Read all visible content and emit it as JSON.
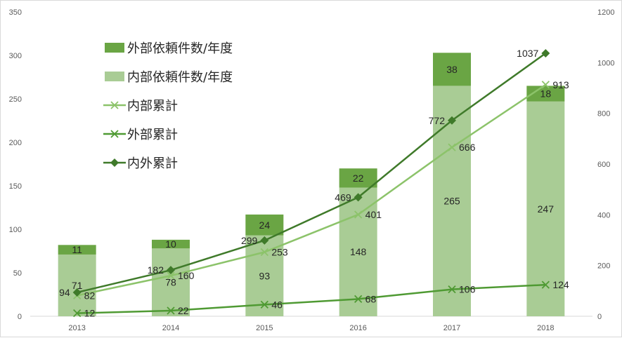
{
  "chart_data": {
    "type": "bar",
    "categories": [
      "2013",
      "2014",
      "2015",
      "2016",
      "2017",
      "2018"
    ],
    "series": [
      {
        "name": "外部依頼件数/年度",
        "type": "bar-stacked",
        "axis": "left",
        "color": "#6aa544",
        "values": [
          11,
          10,
          24,
          22,
          38,
          18
        ]
      },
      {
        "name": "内部依頼件数/年度",
        "type": "bar-stacked",
        "axis": "left",
        "color": "#a9cc95",
        "values": [
          71,
          78,
          93,
          148,
          265,
          247
        ]
      },
      {
        "name": "内部累計",
        "type": "line",
        "axis": "right",
        "marker": "x",
        "color": "#8cc36a",
        "values": [
          82,
          160,
          253,
          401,
          666,
          913
        ]
      },
      {
        "name": "外部累計",
        "type": "line",
        "axis": "right",
        "marker": "x",
        "color": "#4f9a33",
        "values": [
          12,
          22,
          46,
          68,
          106,
          124
        ]
      },
      {
        "name": "内外累計",
        "type": "line",
        "axis": "right",
        "marker": "diamond",
        "color": "#3f7a2a",
        "values": [
          94,
          182,
          299,
          469,
          772,
          1037
        ]
      }
    ],
    "y_left": {
      "min": 0,
      "max": 350,
      "ticks": [
        "0",
        "50",
        "100",
        "150",
        "200",
        "250",
        "300",
        "350"
      ]
    },
    "y_right": {
      "min": 0,
      "max": 1200,
      "ticks": [
        "0",
        "200",
        "400",
        "600",
        "800",
        "1000",
        "1200"
      ]
    },
    "legend": "top-left",
    "grid": false
  }
}
